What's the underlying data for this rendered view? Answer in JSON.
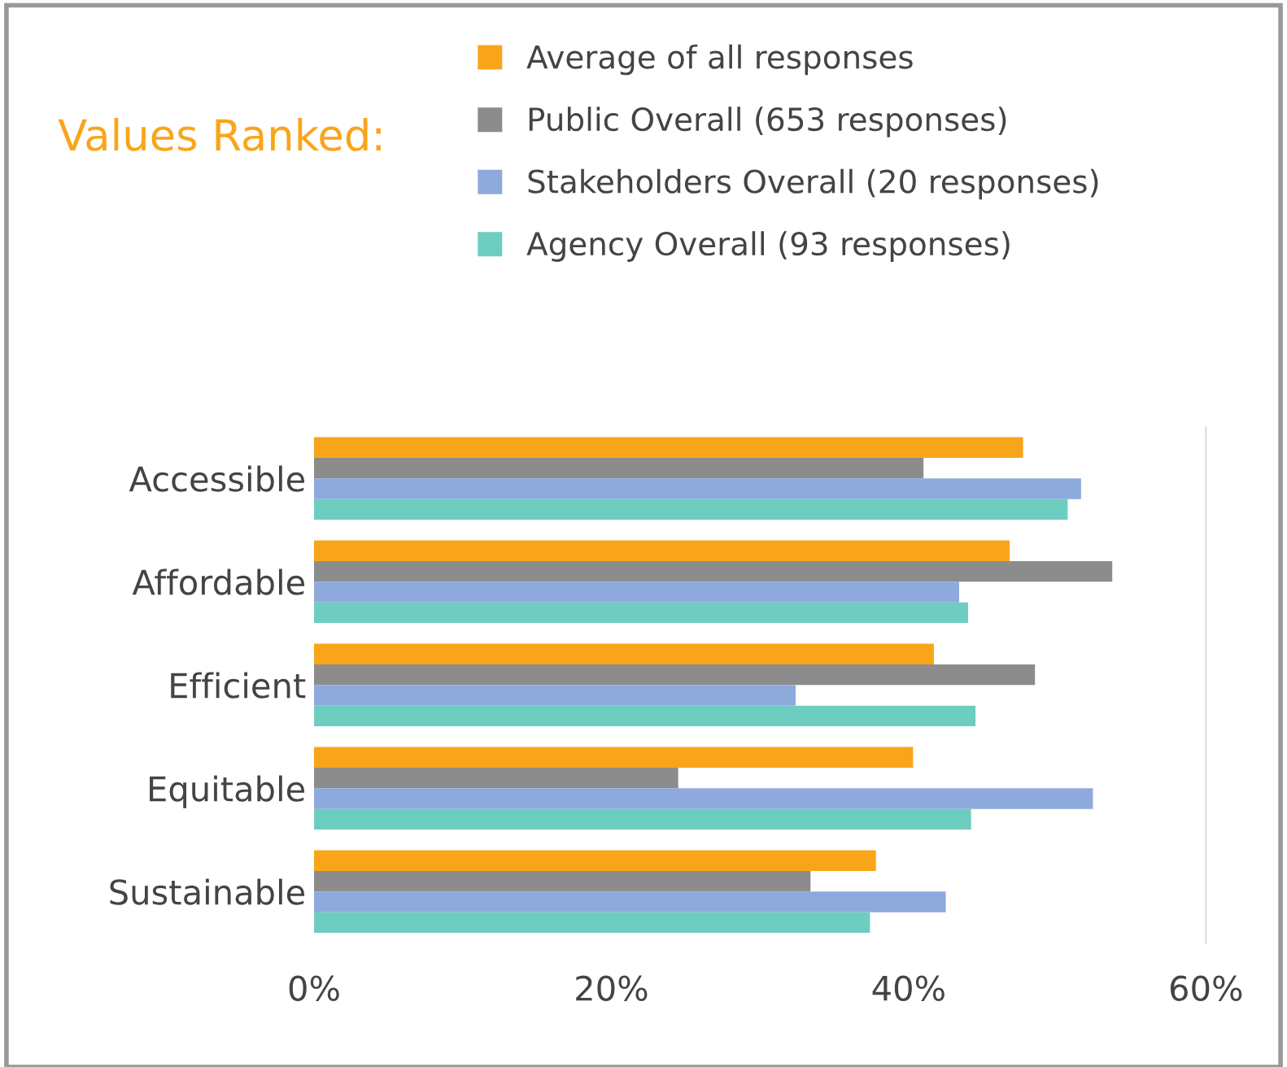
{
  "chart_data": {
    "type": "bar",
    "orientation": "horizontal",
    "title": "Values Ranked:",
    "categories": [
      "Accessible",
      "Affordable",
      "Efficient",
      "Equitable",
      "Sustainable"
    ],
    "series": [
      {
        "name": "Average of all responses",
        "color": "#f9a51a",
        "values": [
          47.7,
          46.8,
          41.7,
          40.3,
          37.8
        ]
      },
      {
        "name": "Public Overall (653 responses)",
        "color": "#8c8c8c",
        "values": [
          41.0,
          53.7,
          48.5,
          24.5,
          33.4
        ]
      },
      {
        "name": "Stakeholders Overall (20 responses)",
        "color": "#8eaadc",
        "values": [
          51.6,
          43.4,
          32.4,
          52.4,
          42.5
        ]
      },
      {
        "name": "Agency Overall (93 responses)",
        "color": "#6dcdc0",
        "values": [
          50.7,
          44.0,
          44.5,
          44.2,
          37.4
        ]
      }
    ],
    "xlim": [
      0,
      60
    ],
    "xticks": [
      {
        "value": 0,
        "label": "0%"
      },
      {
        "value": 20,
        "label": "20%"
      },
      {
        "value": 40,
        "label": "40%"
      },
      {
        "value": 60,
        "label": "60%"
      }
    ],
    "legend": "top",
    "grid": false
  }
}
